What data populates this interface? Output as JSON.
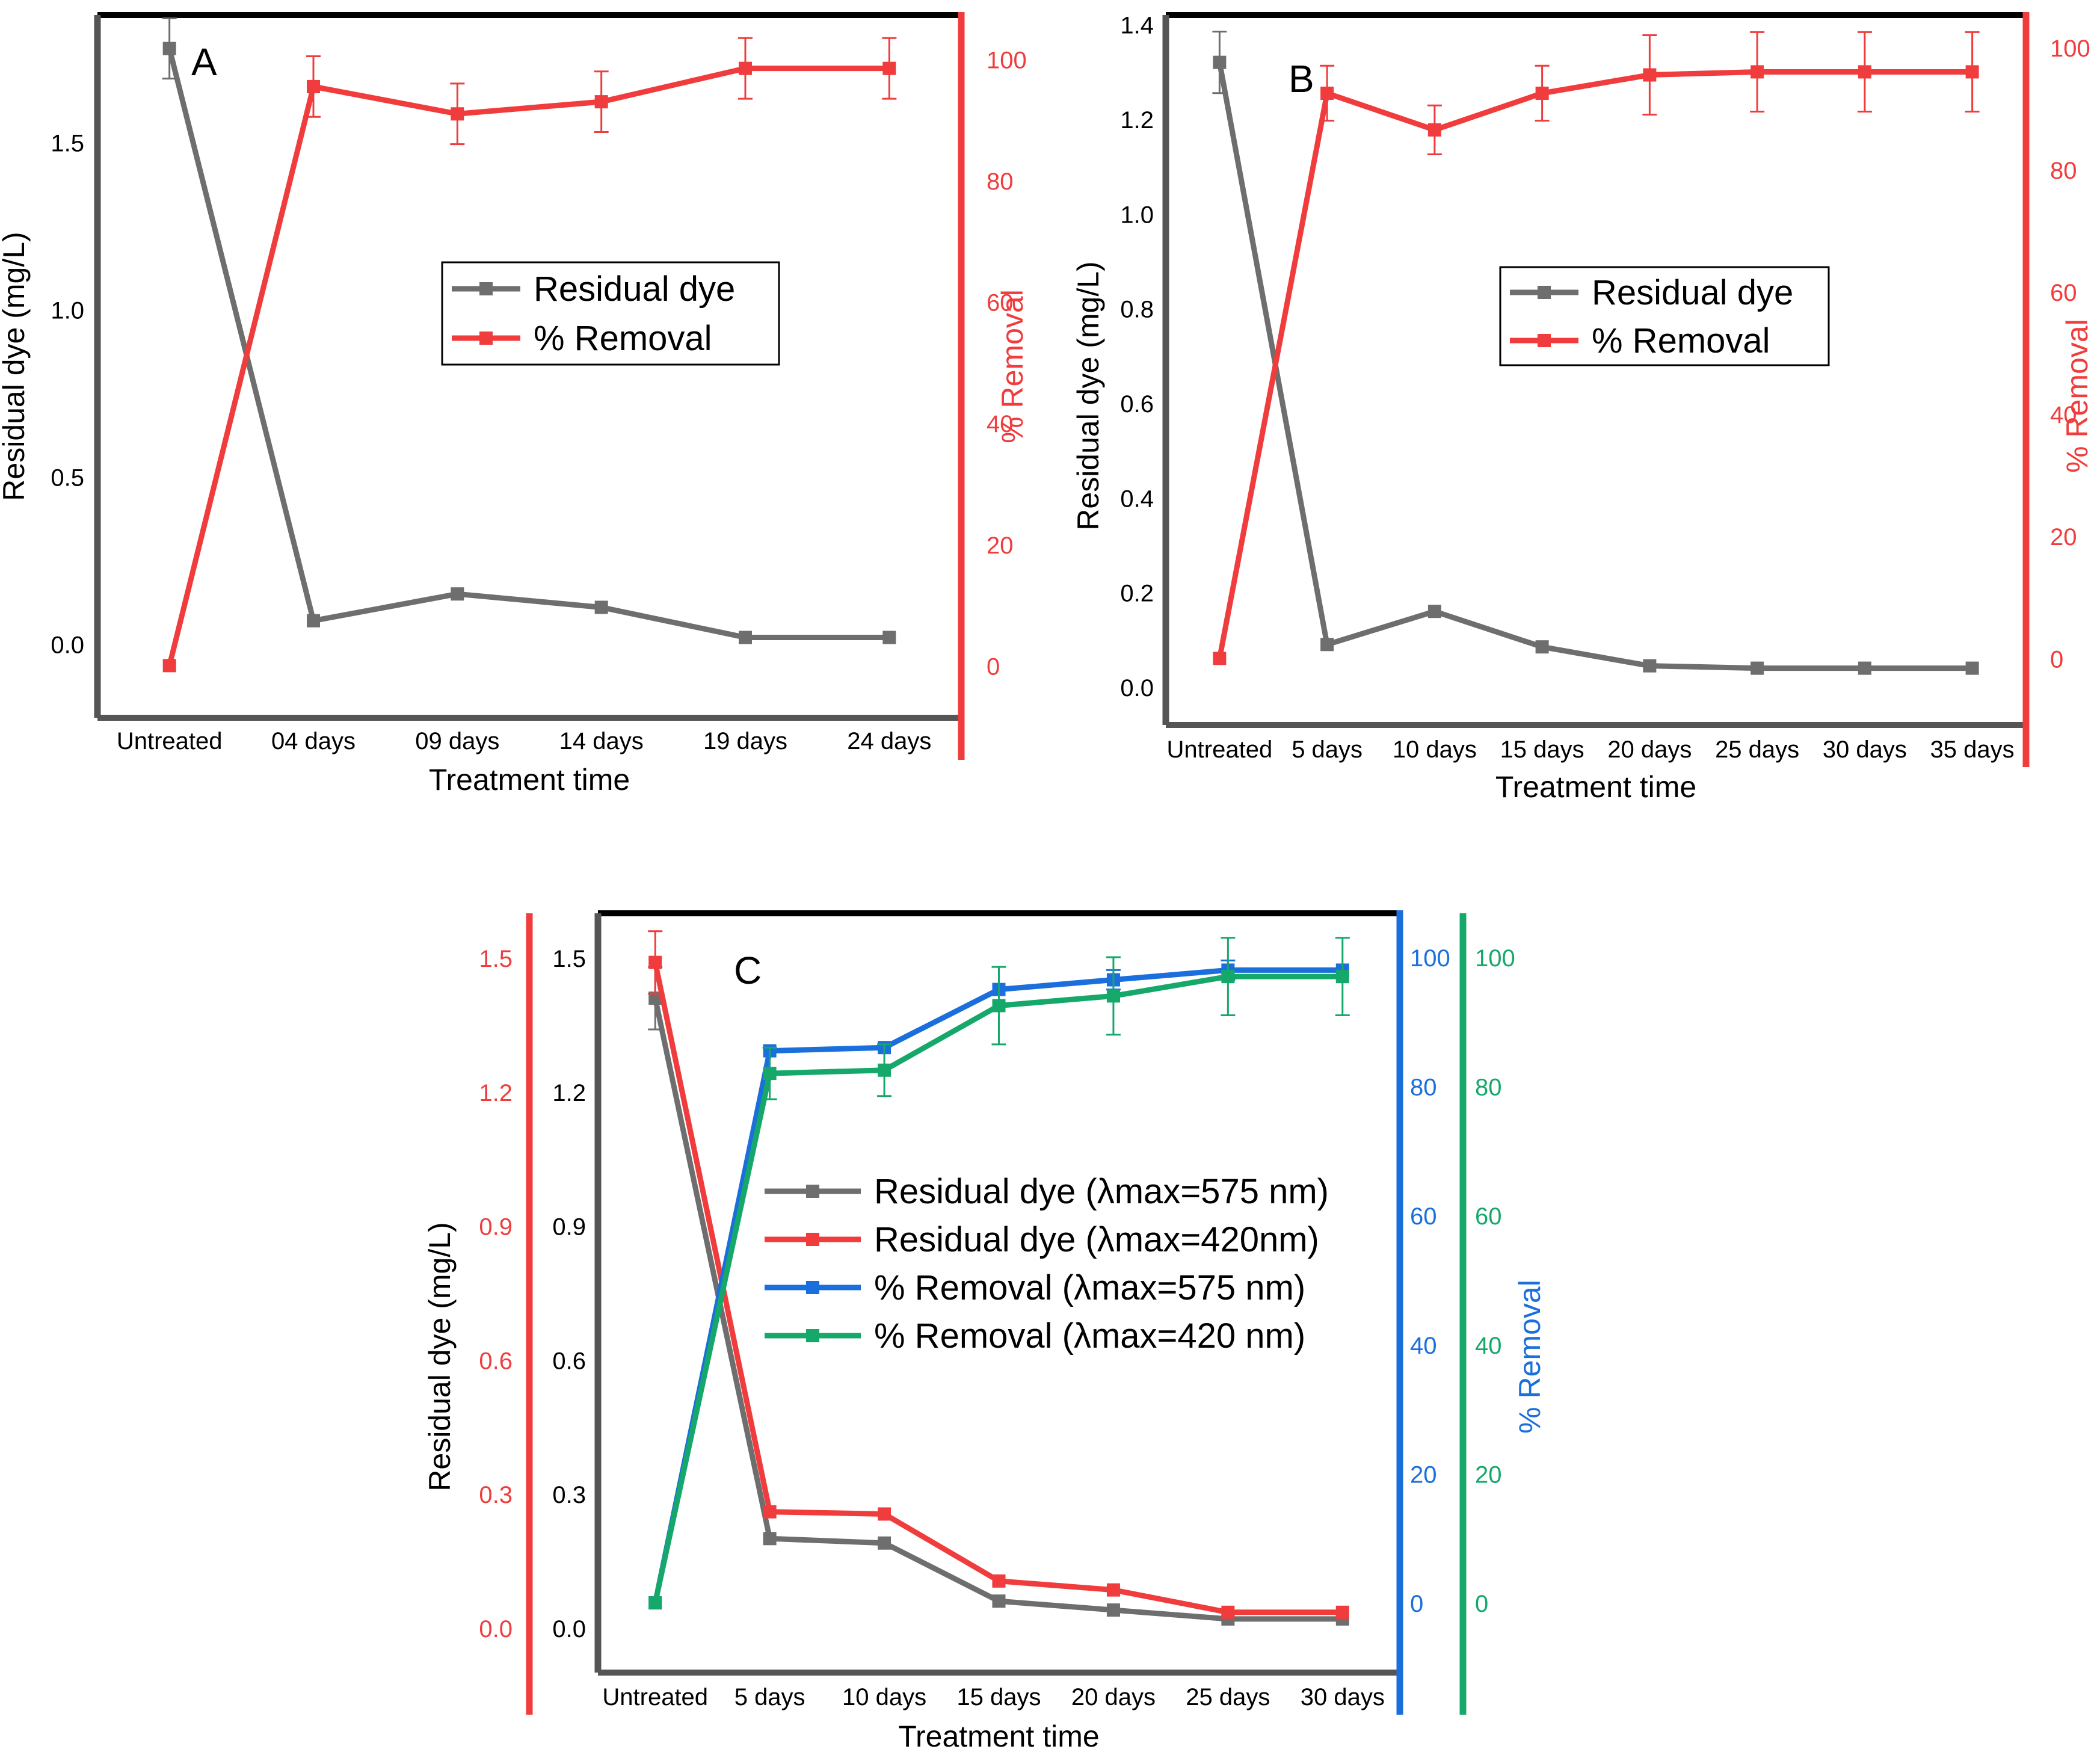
{
  "colors": {
    "gray": "#6e6e6e",
    "red": "#f03c3c",
    "blue": "#1a6fdc",
    "green": "#16a86a",
    "black": "#000000"
  },
  "chart_data": [
    {
      "id": "A",
      "panel_label": "A",
      "type": "line",
      "xlabel": "Treatment time",
      "ylabel_left": "Residual dye (mg/L)",
      "ylabel_right": "% Removal",
      "categories": [
        "Untreated",
        "04 days",
        "09 days",
        "14 days",
        "19 days",
        "24 days"
      ],
      "left_axes": [
        {
          "name": "left",
          "color": "black",
          "ylim": [
            -0.22,
            1.88
          ],
          "ticks": [
            0.0,
            0.5,
            1.0,
            1.5
          ],
          "tick_labels": [
            "0.0",
            "0.5",
            "1.0",
            "1.5"
          ]
        }
      ],
      "right_axes": [
        {
          "name": "right",
          "color": "red",
          "ylim": [
            -8.6,
            107.3
          ],
          "ticks": [
            0,
            20,
            40,
            60,
            80,
            100
          ],
          "tick_labels": [
            "0",
            "20",
            "40",
            "60",
            "80",
            "100"
          ]
        }
      ],
      "series": [
        {
          "name": "Residual dye",
          "axis": "left",
          "color": "gray",
          "values": [
            1.78,
            0.07,
            0.15,
            0.11,
            0.02,
            0.02
          ],
          "errors": [
            0.09,
            0,
            0,
            0,
            0,
            0
          ]
        },
        {
          "name": "% Removal",
          "axis": "right",
          "color": "red",
          "values": [
            0,
            95.5,
            91,
            93,
            98.5,
            98.5
          ],
          "errors": [
            0,
            5,
            5,
            5,
            5,
            5
          ]
        }
      ],
      "legend_position": "center"
    },
    {
      "id": "B",
      "panel_label": "B",
      "type": "line",
      "xlabel": "Treatment time",
      "ylabel_left": "Residual dye (mg/L)",
      "ylabel_right": "% Removal",
      "categories": [
        "Untreated",
        "5 days",
        "10 days",
        "15 days",
        "20 days",
        "25 days",
        "30 days",
        "35 days"
      ],
      "left_axes": [
        {
          "name": "left",
          "color": "black",
          "ylim": [
            -0.08,
            1.42
          ],
          "ticks": [
            0.0,
            0.2,
            0.4,
            0.6,
            0.8,
            1.0,
            1.2,
            1.4
          ],
          "tick_labels": [
            "0.0",
            "0.2",
            "0.4",
            "0.6",
            "0.8",
            "1.0",
            "1.2",
            "1.4"
          ]
        }
      ],
      "right_axes": [
        {
          "name": "right",
          "color": "red",
          "ylim": [
            -10.9,
            105.3
          ],
          "ticks": [
            0,
            20,
            40,
            60,
            80,
            100
          ],
          "tick_labels": [
            "0",
            "20",
            "40",
            "60",
            "80",
            "100"
          ]
        }
      ],
      "series": [
        {
          "name": "Residual dye",
          "axis": "left",
          "color": "gray",
          "values": [
            1.32,
            0.09,
            0.16,
            0.085,
            0.045,
            0.04,
            0.04,
            0.04
          ],
          "errors": [
            0.065,
            0,
            0,
            0,
            0,
            0,
            0,
            0
          ]
        },
        {
          "name": "% Removal",
          "axis": "right",
          "color": "red",
          "values": [
            0,
            92.5,
            86.5,
            92.5,
            95.5,
            96,
            96,
            96
          ],
          "errors": [
            0,
            4.5,
            4,
            4.5,
            6.5,
            6.5,
            6.5,
            6.5
          ]
        }
      ],
      "legend_position": "center"
    },
    {
      "id": "C",
      "panel_label": "C",
      "type": "line",
      "xlabel": "Treatment time",
      "ylabel_left": "Residual dye (mg/L)",
      "ylabel_right": "% Removal",
      "categories": [
        "Untreated",
        "5 days",
        "10 days",
        "15 days",
        "20 days",
        "25 days",
        "30 days"
      ],
      "left_axes": [
        {
          "name": "left_black",
          "color": "black",
          "ylim": [
            -0.1,
            1.6
          ],
          "ticks": [
            0.0,
            0.3,
            0.6,
            0.9,
            1.2,
            1.5
          ],
          "tick_labels": [
            "0.0",
            "0.3",
            "0.6",
            "0.9",
            "1.2",
            "1.5"
          ]
        },
        {
          "name": "left_red",
          "color": "red",
          "ylim": [
            -0.1,
            1.6
          ],
          "ticks": [
            0.0,
            0.3,
            0.6,
            0.9,
            1.2,
            1.5
          ],
          "tick_labels": [
            "0.0",
            "0.3",
            "0.6",
            "0.9",
            "1.2",
            "1.5"
          ]
        }
      ],
      "right_axes": [
        {
          "name": "right_blue",
          "color": "blue",
          "ylim": [
            -10.8,
            106.8
          ],
          "ticks": [
            0,
            20,
            40,
            60,
            80,
            100
          ],
          "tick_labels": [
            "0",
            "20",
            "40",
            "60",
            "80",
            "100"
          ]
        },
        {
          "name": "right_green",
          "color": "green",
          "ylim": [
            -10.8,
            106.8
          ],
          "ticks": [
            0,
            20,
            40,
            60,
            80,
            100
          ],
          "tick_labels": [
            "0",
            "20",
            "40",
            "60",
            "80",
            "100"
          ]
        }
      ],
      "series": [
        {
          "name": "Residual dye (λmax=575 nm)",
          "axis": "left_black",
          "color": "gray",
          "values": [
            1.41,
            0.2,
            0.19,
            0.06,
            0.04,
            0.02,
            0.02
          ],
          "errors": [
            0.07,
            0,
            0,
            0,
            0,
            0,
            0
          ]
        },
        {
          "name": "Residual dye (λmax=420nm)",
          "axis": "left_red",
          "color": "red",
          "values": [
            1.49,
            0.26,
            0.255,
            0.105,
            0.085,
            0.035,
            0.035
          ],
          "errors": [
            0.07,
            0,
            0,
            0,
            0,
            0,
            0
          ]
        },
        {
          "name": "% Removal (λmax=575 nm)",
          "axis": "right_blue",
          "color": "blue",
          "values": [
            0,
            85.5,
            86,
            95,
            96.5,
            98,
            98
          ],
          "errors": [
            0,
            0,
            0,
            0,
            1.5,
            1.5,
            0
          ]
        },
        {
          "name": "% Removal (λmax=420 nm)",
          "axis": "right_green",
          "color": "green",
          "values": [
            0,
            82,
            82.5,
            92.5,
            94,
            97,
            97
          ],
          "errors": [
            0,
            4,
            4,
            6,
            6,
            6,
            6
          ]
        }
      ],
      "legend_position": "center"
    }
  ]
}
